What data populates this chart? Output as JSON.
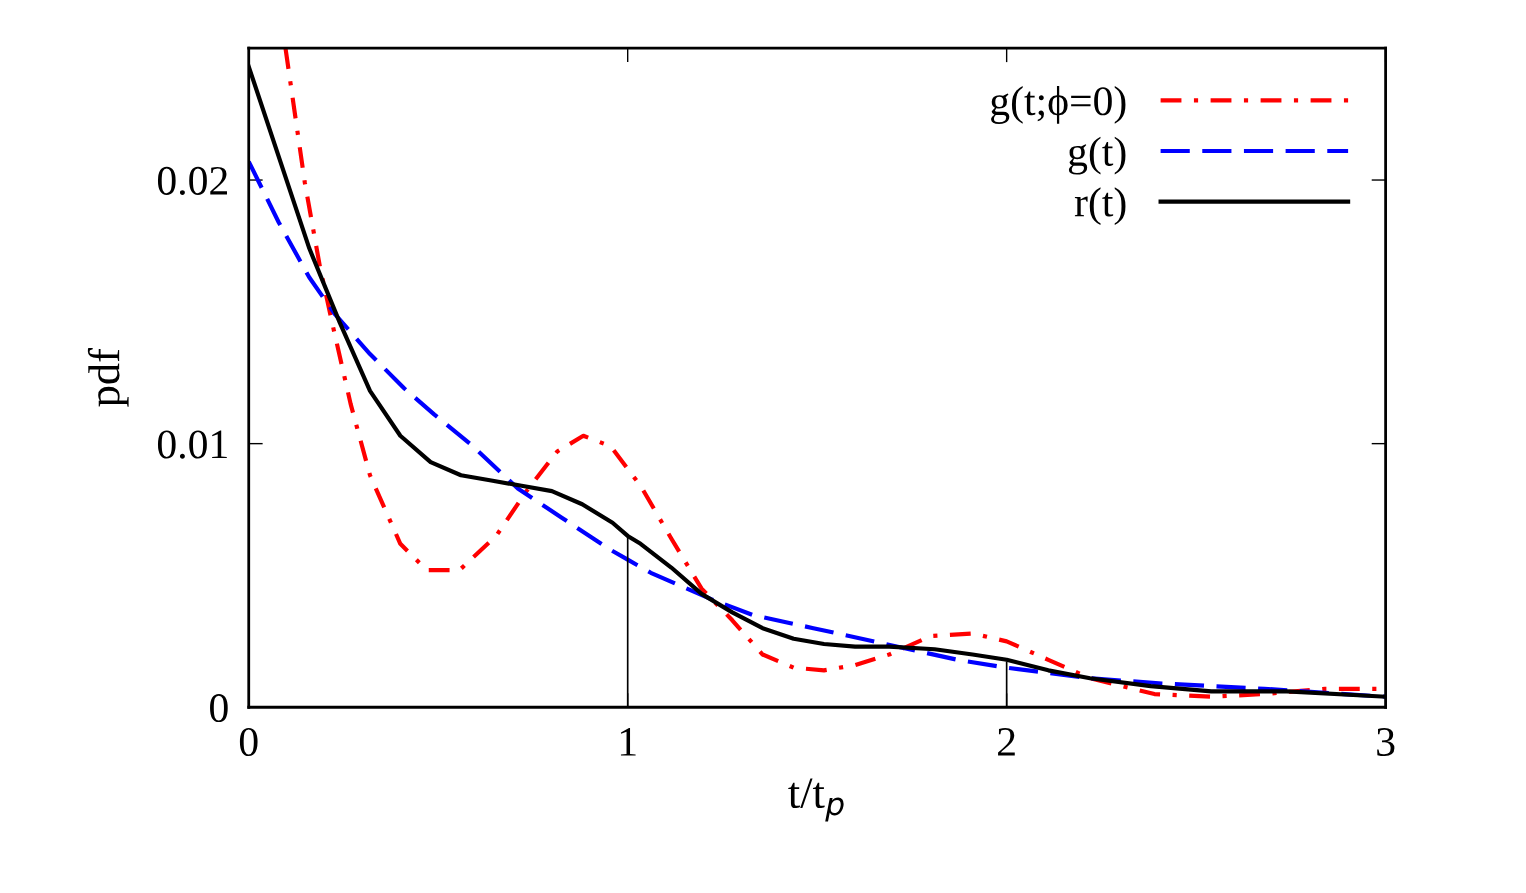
{
  "chart_data": {
    "type": "line",
    "xlabel": "t/t$_{p}$",
    "ylabel": "pdf",
    "xlim": [
      0,
      3
    ],
    "xticks": [
      0,
      1,
      2,
      3
    ],
    "ylim": [
      0,
      0.025
    ],
    "yticks": [
      0,
      0.01,
      0.02
    ],
    "grid": false,
    "legend": "top right",
    "marker": "none",
    "series": [
      {
        "name": "g(t;ϕ=0)",
        "color": "#ff0000",
        "line_style": "dashdot",
        "x": [
          0.097,
          0.148,
          0.188,
          0.223,
          0.269,
          0.32,
          0.4,
          0.47,
          0.556,
          0.653,
          0.733,
          0.814,
          0.883,
          0.955,
          1.034,
          1.115,
          1.195,
          1.276,
          1.356,
          1.438,
          1.518,
          1.6,
          1.69,
          1.8,
          1.91,
          2.0,
          2.11,
          2.22,
          2.39,
          2.54,
          2.68,
          2.84,
          3.0
        ],
        "values": [
          0.025,
          0.0199,
          0.0167,
          0.0144,
          0.0115,
          0.0088,
          0.0062,
          0.0052,
          0.0052,
          0.0065,
          0.0082,
          0.0097,
          0.0103,
          0.0099,
          0.0084,
          0.0064,
          0.0045,
          0.0033,
          0.002,
          0.0015,
          0.0014,
          0.0016,
          0.002,
          0.0027,
          0.0028,
          0.0025,
          0.0018,
          0.0011,
          0.0005,
          0.0004,
          0.0005,
          0.0007,
          0.0007
        ]
      },
      {
        "name": "g(t)",
        "color": "#0000ff",
        "line_style": "dashed",
        "x": [
          0,
          0.079,
          0.16,
          0.228,
          0.32,
          0.41,
          0.49,
          0.584,
          0.71,
          0.825,
          0.951,
          1.0,
          1.061,
          1.22,
          1.33,
          1.49,
          1.68,
          1.87,
          2.0,
          2.22,
          2.41,
          2.68,
          3.0
        ],
        "values": [
          0.0207,
          0.0184,
          0.0163,
          0.0149,
          0.0134,
          0.0121,
          0.0111,
          0.01,
          0.0083,
          0.0072,
          0.006,
          0.0056,
          0.0051,
          0.0041,
          0.0035,
          0.003,
          0.0024,
          0.0018,
          0.0015,
          0.0011,
          0.0009,
          0.0007,
          0.0004
        ]
      },
      {
        "name": "r(t)",
        "color": "#000000",
        "line_style": "solid",
        "x": [
          0,
          0.16,
          0.24,
          0.32,
          0.4,
          0.48,
          0.56,
          0.64,
          0.72,
          0.8,
          0.88,
          0.96,
          1.0,
          1.034,
          1.115,
          1.195,
          1.276,
          1.356,
          1.438,
          1.518,
          1.6,
          1.69,
          1.81,
          1.91,
          2.0,
          2.11,
          2.22,
          2.38,
          2.54,
          2.74,
          3.0
        ],
        "values": [
          0.0243,
          0.0174,
          0.0146,
          0.012,
          0.0103,
          0.0093,
          0.0088,
          0.0086,
          0.0084,
          0.0082,
          0.0077,
          0.007,
          0.0065,
          0.0062,
          0.0053,
          0.0043,
          0.0036,
          0.003,
          0.0026,
          0.0024,
          0.0023,
          0.0023,
          0.0022,
          0.002,
          0.0018,
          0.0014,
          0.0011,
          0.0008,
          0.0006,
          0.0006,
          0.0004
        ]
      },
      {
        "color": "#000000",
        "line_style": "solid",
        "x": [
          1,
          1,
          null,
          2,
          2
        ],
        "values": [
          0,
          0.0065,
          null,
          0,
          0.0017
        ]
      }
    ]
  }
}
